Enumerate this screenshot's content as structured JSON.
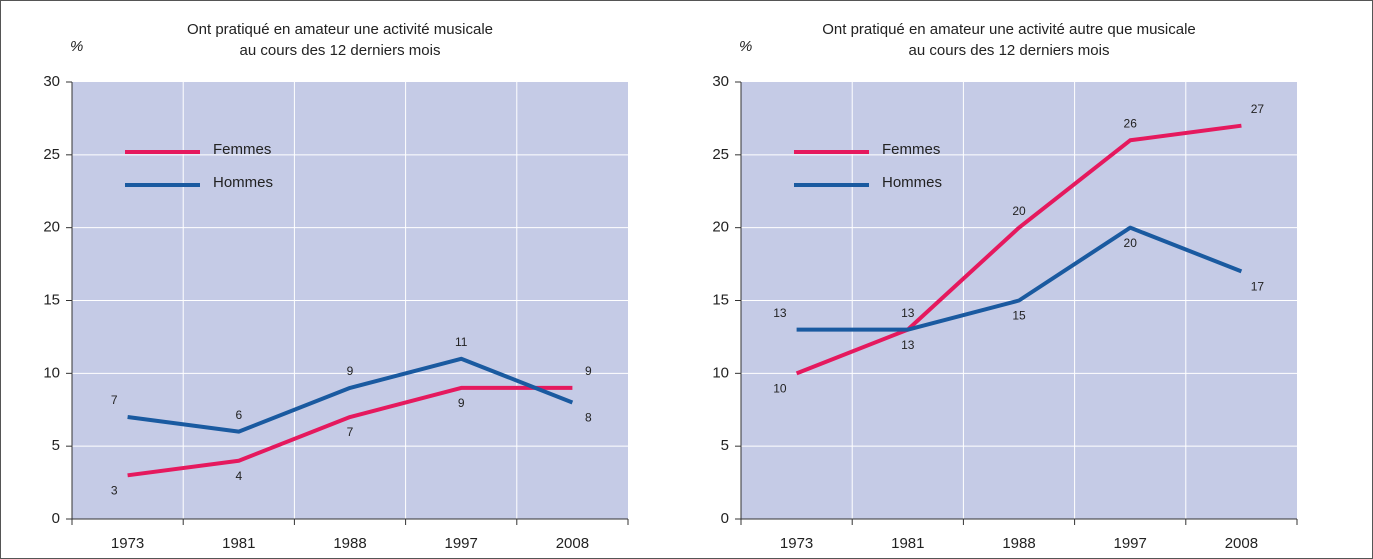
{
  "chart_data": [
    {
      "type": "line",
      "title": [
        "Ont pratiqué en amateur une activité musicale",
        "au cours des 12 derniers mois"
      ],
      "y_label": "%",
      "categories": [
        "1973",
        "1981",
        "1988",
        "1997",
        "2008"
      ],
      "ylim": [
        0,
        30
      ],
      "yticks": [
        0,
        5,
        10,
        15,
        20,
        25,
        30
      ],
      "grid": true,
      "series": [
        {
          "name": "Femmes",
          "color": "#e5195e",
          "values": [
            3,
            4,
            7,
            9,
            9
          ]
        },
        {
          "name": "Hommes",
          "color": "#1a5aa0",
          "values": [
            7,
            6,
            9,
            11,
            8
          ]
        }
      ]
    },
    {
      "type": "line",
      "title": [
        "Ont pratiqué en amateur une activité autre que musicale",
        "au cours des 12 derniers mois"
      ],
      "y_label": "%",
      "categories": [
        "1973",
        "1981",
        "1988",
        "1997",
        "2008"
      ],
      "ylim": [
        0,
        30
      ],
      "yticks": [
        0,
        5,
        10,
        15,
        20,
        25,
        30
      ],
      "grid": true,
      "series": [
        {
          "name": "Femmes",
          "color": "#e5195e",
          "values": [
            10,
            13,
            20,
            26,
            27
          ]
        },
        {
          "name": "Hommes",
          "color": "#1a5aa0",
          "values": [
            13,
            13,
            15,
            20,
            17
          ]
        }
      ]
    }
  ]
}
